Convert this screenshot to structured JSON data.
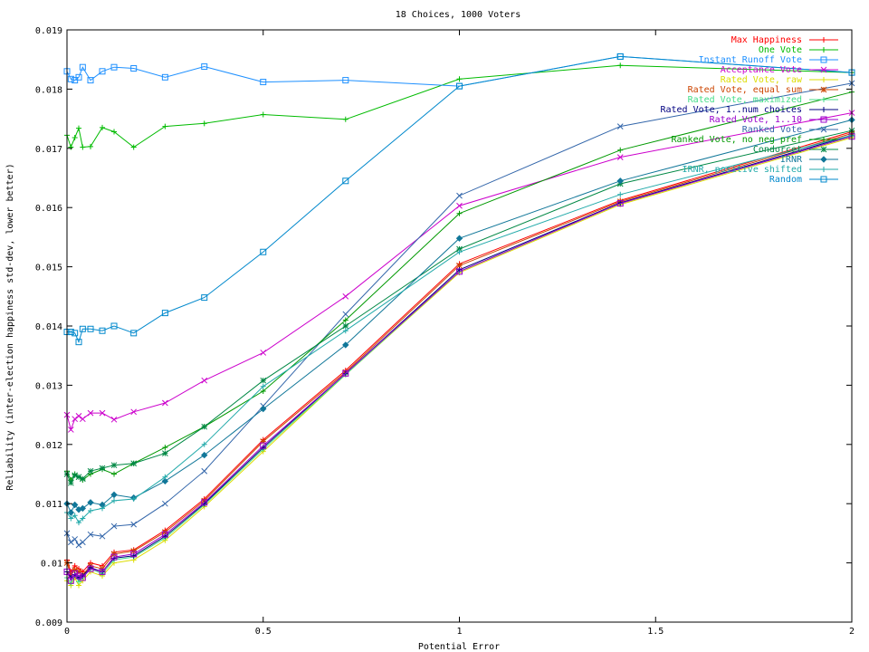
{
  "chart_data": {
    "type": "line",
    "title": "18 Choices, 1000 Voters",
    "xlabel": "Potential Error",
    "ylabel": "Reliability (inter-election happiness std-dev, lower better)",
    "xlim": [
      0,
      2
    ],
    "ylim": [
      0.009,
      0.019
    ],
    "xticks": [
      "0",
      "0.5",
      "1",
      "1.5",
      "2"
    ],
    "yticks": [
      "0.009",
      "0.01",
      "0.011",
      "0.012",
      "0.013",
      "0.014",
      "0.015",
      "0.016",
      "0.017",
      "0.018",
      "0.019"
    ],
    "grid": false,
    "legend_position": "top-right",
    "x": [
      0,
      0.01,
      0.02,
      0.03,
      0.04,
      0.06,
      0.09,
      0.12,
      0.17,
      0.25,
      0.35,
      0.5,
      0.71,
      1,
      1.41,
      2
    ],
    "series": [
      {
        "name": "Max Happiness",
        "color": "#ff0000",
        "marker": "plus",
        "values": [
          0.01005,
          0.00985,
          0.00995,
          0.0099,
          0.00985,
          0.01,
          0.00995,
          0.01018,
          0.01022,
          0.01055,
          0.01108,
          0.01208,
          0.01325,
          0.01505,
          0.01612,
          0.01728
        ]
      },
      {
        "name": "One Vote",
        "color": "#00bb00",
        "marker": "plus",
        "values": [
          0.01722,
          0.01702,
          0.01718,
          0.01734,
          0.01702,
          0.01703,
          0.01735,
          0.01728,
          0.01702,
          0.01737,
          0.01742,
          0.01757,
          0.01749,
          0.01817,
          0.0184,
          0.01828
        ]
      },
      {
        "name": "Instant Runoff Vote",
        "color": "#1e90ff",
        "marker": "square",
        "values": [
          0.0183,
          0.01817,
          0.01815,
          0.0182,
          0.01837,
          0.01815,
          0.0183,
          0.01837,
          0.01835,
          0.0182,
          0.01838,
          0.01812,
          0.01815,
          0.01805,
          0.01855,
          0.01828
        ]
      },
      {
        "name": "Acceptance Vote",
        "color": "#cc00cc",
        "marker": "x",
        "values": [
          0.0125,
          0.01225,
          0.01243,
          0.01248,
          0.01243,
          0.01253,
          0.01253,
          0.01242,
          0.01255,
          0.0127,
          0.01308,
          0.01355,
          0.0145,
          0.01603,
          0.01685,
          0.0176
        ]
      },
      {
        "name": "Rated Vote, raw",
        "color": "#dddd00",
        "marker": "plus",
        "values": [
          0.0097,
          0.00962,
          0.00975,
          0.00962,
          0.0097,
          0.00985,
          0.00978,
          0.01,
          0.01005,
          0.01038,
          0.01095,
          0.01188,
          0.01318,
          0.0149,
          0.01605,
          0.01718
        ]
      },
      {
        "name": "Rated Vote, equal sum",
        "color": "#cc4400",
        "marker": "star",
        "values": [
          0.01,
          0.0098,
          0.00988,
          0.00985,
          0.0098,
          0.00995,
          0.0099,
          0.01015,
          0.0102,
          0.01052,
          0.01105,
          0.01205,
          0.01322,
          0.01502,
          0.0161,
          0.01725
        ]
      },
      {
        "name": "Rated Vote, maximized",
        "color": "#44dd88",
        "marker": "plus",
        "values": [
          0.00975,
          0.00965,
          0.0098,
          0.00968,
          0.00975,
          0.0099,
          0.00982,
          0.01005,
          0.0101,
          0.01042,
          0.01098,
          0.01192,
          0.01318,
          0.01492,
          0.01607,
          0.0172
        ]
      },
      {
        "name": "Rated Vote, 1..num choices",
        "color": "#000080",
        "marker": "plus",
        "values": [
          0.00985,
          0.00975,
          0.0098,
          0.00975,
          0.00978,
          0.00992,
          0.00985,
          0.01008,
          0.01012,
          0.01045,
          0.011,
          0.01195,
          0.0132,
          0.01495,
          0.01608,
          0.01722
        ]
      },
      {
        "name": "Rated Vote, 1..10",
        "color": "#9900cc",
        "marker": "square",
        "values": [
          0.00985,
          0.0097,
          0.00982,
          0.00978,
          0.00975,
          0.0099,
          0.00985,
          0.0101,
          0.01015,
          0.01048,
          0.01102,
          0.01198,
          0.0132,
          0.01492,
          0.01607,
          0.0172
        ]
      },
      {
        "name": "Ranked Vote",
        "color": "#3366aa",
        "marker": "x",
        "values": [
          0.0105,
          0.01035,
          0.0104,
          0.0103,
          0.01035,
          0.01048,
          0.01045,
          0.01062,
          0.01065,
          0.011,
          0.01155,
          0.01265,
          0.0142,
          0.0162,
          0.01737,
          0.0181
        ]
      },
      {
        "name": "Ranked Vote, no neg pref",
        "color": "#009900",
        "marker": "plus",
        "values": [
          0.01155,
          0.0114,
          0.0115,
          0.01145,
          0.0114,
          0.0115,
          0.01158,
          0.0115,
          0.01168,
          0.01195,
          0.0123,
          0.0129,
          0.0141,
          0.0159,
          0.01697,
          0.01795
        ]
      },
      {
        "name": "Condorcet",
        "color": "#008844",
        "marker": "star",
        "values": [
          0.0115,
          0.01135,
          0.01148,
          0.01145,
          0.01142,
          0.01155,
          0.0116,
          0.01165,
          0.01168,
          0.01185,
          0.0123,
          0.01308,
          0.014,
          0.0153,
          0.0164,
          0.0173
        ]
      },
      {
        "name": "IRNR",
        "color": "#117799",
        "marker": "diamond",
        "values": [
          0.011,
          0.01085,
          0.01098,
          0.0109,
          0.01092,
          0.01102,
          0.01098,
          0.01115,
          0.0111,
          0.01138,
          0.01182,
          0.0126,
          0.01368,
          0.01548,
          0.01645,
          0.01748
        ]
      },
      {
        "name": "IRNR, positive shifted",
        "color": "#22aaaa",
        "marker": "plus",
        "values": [
          0.01085,
          0.01075,
          0.0108,
          0.01068,
          0.01075,
          0.01088,
          0.01092,
          0.01105,
          0.01108,
          0.01145,
          0.012,
          0.01298,
          0.01392,
          0.01525,
          0.01622,
          0.01722
        ]
      },
      {
        "name": "Random",
        "color": "#0088cc",
        "marker": "square",
        "values": [
          0.0139,
          0.0139,
          0.01388,
          0.01373,
          0.01395,
          0.01395,
          0.01392,
          0.014,
          0.01388,
          0.01422,
          0.01448,
          0.01525,
          0.01645,
          0.01805,
          0.01855,
          0.01828
        ]
      }
    ]
  }
}
